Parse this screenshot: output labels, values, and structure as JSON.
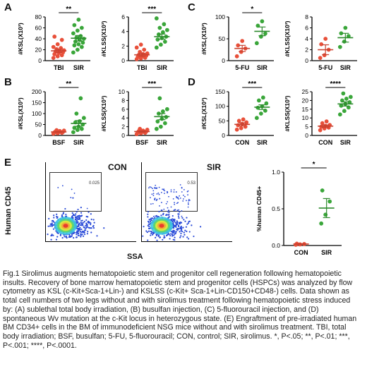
{
  "panels": [
    {
      "letter": "A",
      "id": "A-ksl",
      "ylabel": "#KSL(X10³)",
      "categories": [
        "TBI",
        "SIR"
      ],
      "ylim": [
        0,
        80
      ],
      "ticks": [
        0,
        20,
        40,
        60,
        80
      ],
      "sig": "**",
      "groups": [
        {
          "name": "TBI",
          "points": [
            5,
            8,
            10,
            12,
            14,
            15,
            17,
            18,
            19,
            21,
            23,
            25,
            30,
            38,
            44
          ],
          "mean": 18,
          "sem": 3
        },
        {
          "name": "SIR",
          "points": [
            15,
            20,
            25,
            28,
            30,
            33,
            35,
            38,
            40,
            42,
            45,
            50,
            55,
            60,
            65,
            75
          ],
          "mean": 41,
          "sem": 5
        }
      ]
    },
    {
      "letter": "",
      "id": "A-klss",
      "ylabel": "#KLSS(X10³)",
      "categories": [
        "TBI",
        "SIR"
      ],
      "ylim": [
        0,
        6
      ],
      "ticks": [
        0,
        2,
        4,
        6
      ],
      "sig": "***",
      "groups": [
        {
          "name": "TBI",
          "points": [
            0.2,
            0.3,
            0.4,
            0.5,
            0.6,
            0.7,
            0.8,
            0.9,
            1.0,
            1.2,
            1.5,
            1.8,
            2.2
          ],
          "mean": 0.8,
          "sem": 0.2
        },
        {
          "name": "SIR",
          "points": [
            1.8,
            2.2,
            2.6,
            2.9,
            3.1,
            3.3,
            3.6,
            3.9,
            4.2,
            4.5,
            5.0,
            5.8
          ],
          "mean": 3.3,
          "sem": 0.35
        }
      ]
    },
    {
      "letter": "C",
      "id": "C-ksl",
      "ylabel": "#KSL(X10³)",
      "categories": [
        "5-FU",
        "SIR"
      ],
      "ylim": [
        0,
        100
      ],
      "ticks": [
        0,
        50,
        100
      ],
      "sig": "*",
      "groups": [
        {
          "name": "5-FU",
          "points": [
            10,
            20,
            28,
            35,
            45
          ],
          "mean": 28,
          "sem": 7
        },
        {
          "name": "SIR",
          "points": [
            40,
            55,
            62,
            80,
            90
          ],
          "mean": 67,
          "sem": 10
        }
      ]
    },
    {
      "letter": "",
      "id": "C-klss",
      "ylabel": "#KLSS(X10³)",
      "categories": [
        "5-FU",
        "SIR"
      ],
      "ylim": [
        0,
        8
      ],
      "ticks": [
        0,
        2,
        4,
        6,
        8
      ],
      "sig": "",
      "groups": [
        {
          "name": "5-FU",
          "points": [
            0.5,
            1.0,
            2.0,
            3.0,
            4.0
          ],
          "mean": 2.0,
          "sem": 0.9
        },
        {
          "name": "SIR",
          "points": [
            2.5,
            3.5,
            4.5,
            5.0,
            6.0
          ],
          "mean": 4.2,
          "sem": 0.8
        }
      ]
    },
    {
      "letter": "B",
      "id": "B-ksl",
      "ylabel": "#KSL(X10³)",
      "categories": [
        "BSF",
        "SIR"
      ],
      "ylim": [
        0,
        200
      ],
      "ticks": [
        0,
        50,
        100,
        150,
        200
      ],
      "sig": "**",
      "groups": [
        {
          "name": "BSF",
          "points": [
            8,
            10,
            12,
            14,
            15,
            16,
            18,
            20,
            22,
            24
          ],
          "mean": 16,
          "sem": 2
        },
        {
          "name": "SIR",
          "points": [
            15,
            25,
            30,
            35,
            40,
            50,
            60,
            65,
            80,
            100,
            170
          ],
          "mean": 55,
          "sem": 13
        }
      ]
    },
    {
      "letter": "",
      "id": "B-klss",
      "ylabel": "#KLSS(X10³)",
      "categories": [
        "BSF",
        "SIR"
      ],
      "ylim": [
        0,
        10
      ],
      "ticks": [
        0,
        2,
        4,
        6,
        8,
        10
      ],
      "sig": "***",
      "groups": [
        {
          "name": "BSF",
          "points": [
            0.3,
            0.5,
            0.6,
            0.7,
            0.8,
            0.9,
            1.0,
            1.1,
            1.3,
            1.5
          ],
          "mean": 0.9,
          "sem": 0.15
        },
        {
          "name": "SIR",
          "points": [
            1.5,
            2.0,
            2.8,
            3.2,
            3.8,
            4.2,
            5.0,
            5.5,
            6.0,
            8.5
          ],
          "mean": 4.3,
          "sem": 0.7
        }
      ]
    },
    {
      "letter": "D",
      "id": "D-ksl",
      "ylabel": "#KSL(X10³)",
      "categories": [
        "CON",
        "SIR"
      ],
      "ylim": [
        0,
        150
      ],
      "ticks": [
        0,
        50,
        100,
        150
      ],
      "sig": "***",
      "groups": [
        {
          "name": "CON",
          "points": [
            20,
            25,
            30,
            35,
            40,
            45,
            50,
            55
          ],
          "mean": 38,
          "sem": 5
        },
        {
          "name": "SIR",
          "points": [
            60,
            75,
            85,
            95,
            100,
            110,
            120,
            130
          ],
          "mean": 97,
          "sem": 8
        }
      ]
    },
    {
      "letter": "",
      "id": "D-klss",
      "ylabel": "#KLSS(X10³)",
      "categories": [
        "CON",
        "SIR"
      ],
      "ylim": [
        0,
        25
      ],
      "ticks": [
        0,
        5,
        10,
        15,
        20,
        25
      ],
      "sig": "****",
      "groups": [
        {
          "name": "CON",
          "points": [
            3,
            4,
            4.5,
            5,
            5.5,
            6,
            7,
            8
          ],
          "mean": 5.3,
          "sem": 0.7
        },
        {
          "name": "SIR",
          "points": [
            12,
            14,
            16,
            17,
            18,
            19,
            20,
            21,
            22,
            24
          ],
          "mean": 18,
          "sem": 1.2
        }
      ]
    }
  ],
  "panelE": {
    "letter": "E",
    "flow_ylabel": "Human CD45",
    "flow_xlabel": "SSA",
    "plots": [
      {
        "title": "CON",
        "gate_value": "0.025"
      },
      {
        "title": "SIR",
        "gate_value": "0.53"
      }
    ],
    "chart": {
      "ylabel": "%human CD45+",
      "categories": [
        "CON",
        "SIR"
      ],
      "ylim": [
        0,
        1.0
      ],
      "ticks": [
        "0.0",
        "0.5",
        "1.0"
      ],
      "sig": "*",
      "groups": [
        {
          "name": "CON",
          "points": [
            0.01,
            0.015,
            0.02,
            0.025
          ],
          "mean": 0.02,
          "sem": 0.005
        },
        {
          "name": "SIR",
          "points": [
            0.3,
            0.42,
            0.6,
            0.75
          ],
          "mean": 0.51,
          "sem": 0.13
        }
      ]
    }
  },
  "chart_data": [
    {
      "type": "scatter",
      "panel": "A",
      "ylabel": "#KSL(X10³)",
      "categories": [
        "TBI",
        "SIR"
      ],
      "ylim": [
        0,
        80
      ],
      "significance": "**"
    },
    {
      "type": "scatter",
      "panel": "A",
      "ylabel": "#KLSS(X10³)",
      "categories": [
        "TBI",
        "SIR"
      ],
      "ylim": [
        0,
        6
      ],
      "significance": "***"
    },
    {
      "type": "scatter",
      "panel": "C",
      "ylabel": "#KSL(X10³)",
      "categories": [
        "5-FU",
        "SIR"
      ],
      "ylim": [
        0,
        100
      ],
      "significance": "*"
    },
    {
      "type": "scatter",
      "panel": "C",
      "ylabel": "#KLSS(X10³)",
      "categories": [
        "5-FU",
        "SIR"
      ],
      "ylim": [
        0,
        8
      ],
      "significance": ""
    },
    {
      "type": "scatter",
      "panel": "B",
      "ylabel": "#KSL(X10³)",
      "categories": [
        "BSF",
        "SIR"
      ],
      "ylim": [
        0,
        200
      ],
      "significance": "**"
    },
    {
      "type": "scatter",
      "panel": "B",
      "ylabel": "#KLSS(X10³)",
      "categories": [
        "BSF",
        "SIR"
      ],
      "ylim": [
        0,
        10
      ],
      "significance": "***"
    },
    {
      "type": "scatter",
      "panel": "D",
      "ylabel": "#KSL(X10³)",
      "categories": [
        "CON",
        "SIR"
      ],
      "ylim": [
        0,
        150
      ],
      "significance": "***"
    },
    {
      "type": "scatter",
      "panel": "D",
      "ylabel": "#KLSS(X10³)",
      "categories": [
        "CON",
        "SIR"
      ],
      "ylim": [
        0,
        25
      ],
      "significance": "****"
    },
    {
      "type": "scatter",
      "panel": "E",
      "ylabel": "%human CD45+",
      "categories": [
        "CON",
        "SIR"
      ],
      "ylim": [
        0,
        1.0
      ],
      "significance": "*"
    }
  ],
  "colors": {
    "control_group": "#e8503a",
    "sir_group": "#3aa63a",
    "mean_bar_control": "#c8402e",
    "mean_bar_sir": "#2d8a2d"
  },
  "caption": "Fig.1 Sirolimus augments hematopoietic stem and progenitor cell regeneration following hematopoietic insults. Recovery of bone marrow hematopoietic stem and progenitor cells (HSPCs) was analyzed by flow cytometry as KSL (c-Kit+Sca-1+Lin-) and KSLSS (c-Kit+ Sca-1+Lin-CD150+CD48-) cells.  Data shown as total cell numbers of two legs without and with sirolimus treatment following hematopoietic stress induced by: (A) sublethal total body irradiation, (B) busulfan injection, (C) 5-fluorouracil injection, and (D) spontaneous Wv mutation at the c-Kit locus in heterozygous state. (E) Engraftment of pre-irradiated human BM CD34+ cells in the BM of immunodeficient NSG mice without and with sirolimus treatment. TBI, total body irradiation; BSF, busulfan; 5-FU, 5-fluorouracil; CON, control; SIR, sirolimus. *, P<.05; **, P<.01; ***, P<.001; ****, P<.0001."
}
